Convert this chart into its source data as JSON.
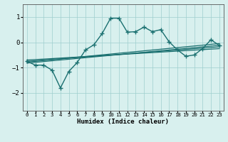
{
  "xlabel": "Humidex (Indice chaleur)",
  "bg_color": "#d8f0ee",
  "grid_color": "#9ecece",
  "line_color": "#1a7070",
  "xlim": [
    -0.5,
    23.5
  ],
  "ylim": [
    -2.7,
    1.5
  ],
  "yticks": [
    -2,
    -1,
    0,
    1
  ],
  "xticks": [
    0,
    1,
    2,
    3,
    4,
    5,
    6,
    7,
    8,
    9,
    10,
    11,
    12,
    13,
    14,
    15,
    16,
    17,
    18,
    19,
    20,
    21,
    22,
    23
  ],
  "main_x": [
    0,
    1,
    2,
    3,
    4,
    5,
    6,
    7,
    8,
    9,
    10,
    11,
    12,
    13,
    14,
    15,
    16,
    17,
    18,
    19,
    20,
    21,
    22,
    23
  ],
  "main_y": [
    -0.75,
    -0.9,
    -0.9,
    -1.1,
    -1.8,
    -1.15,
    -0.8,
    -0.3,
    -0.1,
    0.35,
    0.95,
    0.95,
    0.4,
    0.42,
    0.6,
    0.42,
    0.5,
    0.02,
    -0.3,
    -0.55,
    -0.5,
    -0.25,
    0.1,
    -0.12
  ],
  "line2_x": [
    0,
    23
  ],
  "line2_y": [
    -0.78,
    -0.05
  ],
  "line3_x": [
    0,
    23
  ],
  "line3_y": [
    -0.82,
    -0.12
  ],
  "line4_x": [
    0,
    23
  ],
  "line4_y": [
    -0.75,
    -0.18
  ],
  "line5_x": [
    0,
    23
  ],
  "line5_y": [
    -0.7,
    -0.25
  ]
}
